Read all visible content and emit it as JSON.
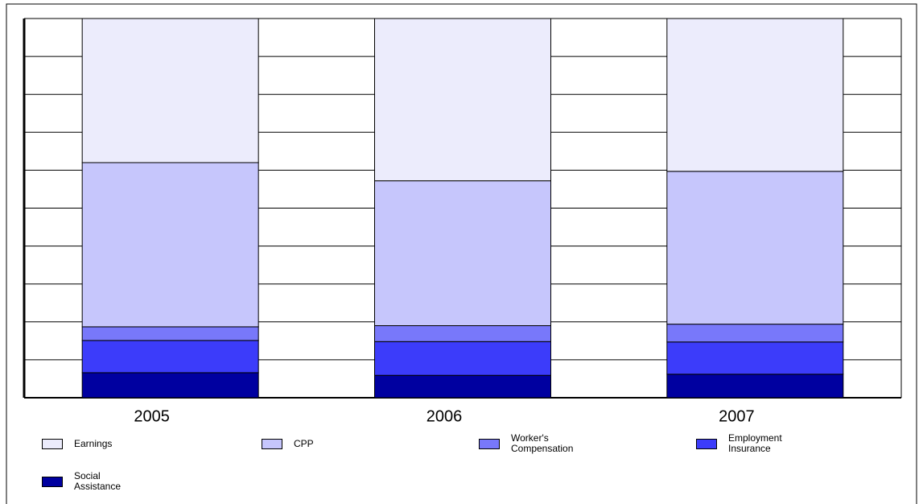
{
  "chart_data": {
    "type": "stacked_bar",
    "categories": [
      "2005",
      "2006",
      "2007"
    ],
    "series": [
      {
        "name": "Earnings",
        "color": "#ececfc",
        "values": [
          38.0,
          42.8,
          40.3
        ]
      },
      {
        "name": "CPP",
        "color": "#c6c6fc",
        "values": [
          43.3,
          38.2,
          40.3
        ]
      },
      {
        "name": "Worker's Compensation",
        "color": "#7878fa",
        "values": [
          3.6,
          4.2,
          4.7
        ]
      },
      {
        "name": "Employment Insurance",
        "color": "#3c3cfa",
        "values": [
          8.5,
          8.9,
          8.5
        ]
      },
      {
        "name": "Social Assistance",
        "color": "#0000a0",
        "values": [
          6.6,
          5.9,
          6.2
        ]
      }
    ],
    "ylim": [
      0,
      100
    ],
    "yticks": [
      0,
      10,
      20,
      30,
      40,
      50,
      60,
      70,
      80,
      90,
      100
    ],
    "grid": true
  }
}
